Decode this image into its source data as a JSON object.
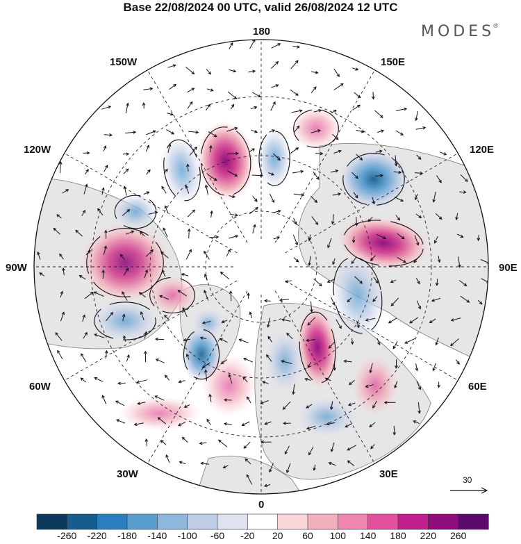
{
  "header": {
    "title": "Base 22/08/2024 00 UTC, valid 26/08/2024 12 UTC",
    "brand": "MODES",
    "brand_mark": "®"
  },
  "longitude_labels": {
    "top": "180",
    "bottom": "0",
    "left": "90W",
    "right": "90E",
    "nw_upper": "150W",
    "nw_lower": "120W",
    "ne_upper": "150E",
    "ne_lower": "120E",
    "sw_upper": "60W",
    "sw_lower": "30W",
    "se_upper": "60E",
    "se_lower": "30E"
  },
  "vector_scale": {
    "label": "30"
  },
  "colorbar": {
    "colors": [
      "#0d3a5c",
      "#155d8e",
      "#2b7fbf",
      "#5a9ed0",
      "#8db7dd",
      "#bfcde6",
      "#e1e2f0",
      "#ffffff",
      "#f8d6d9",
      "#f2b0bd",
      "#ee86ad",
      "#e2519c",
      "#c01f8e",
      "#8f0c7d",
      "#5c0a6c"
    ],
    "ticks": [
      "-260",
      "-220",
      "-180",
      "-140",
      "-100",
      "-60",
      "-20",
      "20",
      "60",
      "100",
      "140",
      "180",
      "220",
      "260"
    ]
  },
  "map": {
    "projection": "polar stereographic",
    "colors": {
      "positive": "#d0408f",
      "negative": "#2f75b5",
      "land": "#e6e6e6",
      "ocean": "#ffffff"
    },
    "anomalies": [
      {
        "sign": "positive",
        "intensity": 0.95
      },
      {
        "sign": "positive",
        "intensity": 0.45
      },
      {
        "sign": "negative",
        "intensity": 0.55
      },
      {
        "sign": "negative",
        "intensity": 0.5
      },
      {
        "sign": "negative",
        "intensity": 0.85
      },
      {
        "sign": "positive",
        "intensity": 0.9
      },
      {
        "sign": "negative",
        "intensity": 0.45
      },
      {
        "sign": "positive",
        "intensity": 0.75
      },
      {
        "sign": "negative",
        "intensity": 0.5
      },
      {
        "sign": "positive",
        "intensity": 0.45
      },
      {
        "sign": "negative",
        "intensity": 0.45
      },
      {
        "sign": "positive",
        "intensity": 0.9
      },
      {
        "sign": "negative",
        "intensity": 0.7
      },
      {
        "sign": "negative",
        "intensity": 0.4
      },
      {
        "sign": "negative",
        "intensity": 0.35
      },
      {
        "sign": "positive",
        "intensity": 0.5
      },
      {
        "sign": "negative",
        "intensity": 0.3
      },
      {
        "sign": "positive",
        "intensity": 0.35
      },
      {
        "sign": "positive",
        "intensity": 0.3
      }
    ]
  }
}
